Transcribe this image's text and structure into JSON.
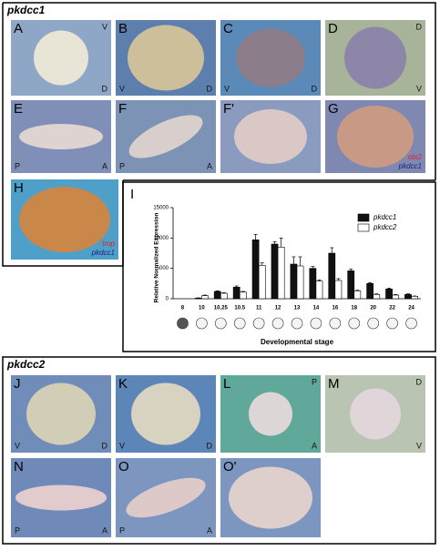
{
  "sections": [
    {
      "title": "pkdcc1"
    },
    {
      "title": "pkdcc2"
    }
  ],
  "panels": [
    {
      "label": "A",
      "top_right": "V",
      "bottom_right": "D"
    },
    {
      "label": "B",
      "bottom_left": "V",
      "bottom_right": "D"
    },
    {
      "label": "C",
      "bottom_left": "V",
      "bottom_right": "D"
    },
    {
      "label": "D",
      "top_right": "D",
      "bottom_right": "V"
    },
    {
      "label": "E",
      "bottom_left": "P",
      "bottom_right": "A"
    },
    {
      "label": "F",
      "bottom_left": "P",
      "bottom_right": "A"
    },
    {
      "label": "F'"
    },
    {
      "label": "G",
      "stain_red": "otx2",
      "stain_blue": "pkdcc1"
    },
    {
      "label": "H",
      "stain_red": "trop",
      "stain_blue": "pkdcc1"
    },
    {
      "label": "J",
      "bottom_left": "V",
      "bottom_right": "D"
    },
    {
      "label": "K",
      "bottom_left": "V",
      "bottom_right": "D"
    },
    {
      "label": "L",
      "top_right": "P",
      "bottom_right": "A"
    },
    {
      "label": "M",
      "top_right": "D",
      "bottom_right": "V"
    },
    {
      "label": "N",
      "bottom_left": "P",
      "bottom_right": "A"
    },
    {
      "label": "O",
      "bottom_left": "P",
      "bottom_right": "A"
    },
    {
      "label": "O'"
    }
  ],
  "chart_data": {
    "type": "bar",
    "panel_label": "I",
    "ylabel": "Relative Normalized Expression",
    "xlabel": "Developmental stage",
    "categories": [
      "8",
      "10",
      "10.25",
      "10.5",
      "11",
      "12",
      "13",
      "14",
      "16",
      "18",
      "20",
      "22",
      "24"
    ],
    "series": [
      {
        "name": "pkdcc1",
        "color": "#111111",
        "values": [
          0,
          100,
          1200,
          1900,
          9700,
          9000,
          5700,
          5000,
          7500,
          4600,
          2500,
          1600,
          700
        ],
        "errors": [
          0,
          50,
          100,
          200,
          900,
          400,
          1200,
          300,
          900,
          300,
          150,
          150,
          100
        ]
      },
      {
        "name": "pkdcc2",
        "color": "#ffffff",
        "values": [
          0,
          500,
          900,
          1100,
          5500,
          8500,
          5400,
          2900,
          3000,
          1300,
          700,
          600,
          400
        ],
        "errors": [
          0,
          100,
          100,
          100,
          400,
          1500,
          1500,
          200,
          300,
          100,
          100,
          100,
          50
        ]
      }
    ],
    "ylim": [
      0,
      15000
    ],
    "yticks": [
      0,
      5000,
      10000,
      15000
    ],
    "legend": "top-right"
  }
}
